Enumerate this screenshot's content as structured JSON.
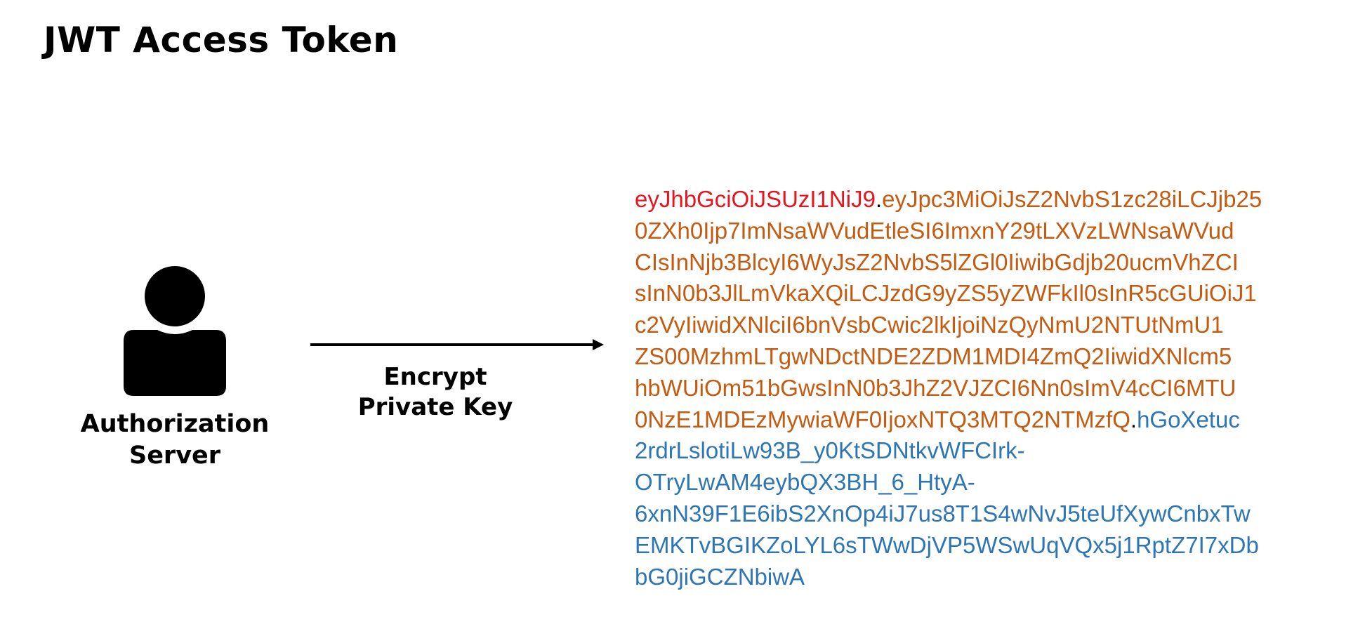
{
  "title": "JWT Access Token",
  "server": {
    "icon": "user-icon",
    "label_line1": "Authorization",
    "label_line2": "Server"
  },
  "arrow": {
    "icon": "arrow-right-icon",
    "label_line1": "Encrypt",
    "label_line2": "Private Key"
  },
  "colors": {
    "header": "#e8141e",
    "payload": "#c55a11",
    "signature": "#2e75b6",
    "text": "#000000"
  },
  "token": {
    "lines": [
      [
        {
          "text": "eyJhbGciOiJSUzI1NiJ9",
          "part": "header"
        },
        {
          "text": ".",
          "part": "dot"
        },
        {
          "text": "eyJpc3MiOiJsZ2NvbS1zc28iLCJjb25",
          "part": "payload"
        }
      ],
      [
        {
          "text": "0ZXh0Ijp7ImNsaWVudEtleSI6ImxnY29tLXVzLWNsaWVud",
          "part": "payload"
        }
      ],
      [
        {
          "text": "CIsInNjb3BlcyI6WyJsZ2NvbS5lZGl0IiwibGdjb20ucmVhZCI",
          "part": "payload"
        }
      ],
      [
        {
          "text": "sInN0b3JlLmVkaXQiLCJzdG9yZS5yZWFkIl0sInR5cGUiOiJ1",
          "part": "payload"
        }
      ],
      [
        {
          "text": "c2VyIiwidXNlciI6bnVsbCwic2lkIjoiNzQyNmU2NTUtNmU1",
          "part": "payload"
        }
      ],
      [
        {
          "text": "ZS00MzhmLTgwNDctNDE2ZDM1MDI4ZmQ2IiwidXNlcm5",
          "part": "payload"
        }
      ],
      [
        {
          "text": "hbWUiOm51bGwsInN0b3JhZ2VJZCI6Nn0sImV4cCI6MTU",
          "part": "payload"
        }
      ],
      [
        {
          "text": "0NzE1MDEzMywiaWF0IjoxNTQ3MTQ2NTMzfQ",
          "part": "payload"
        },
        {
          "text": ".",
          "part": "dot"
        },
        {
          "text": "hGoXetuc",
          "part": "signature"
        }
      ],
      [
        {
          "text": "2rdrLslotiLw93B_y0KtSDNtkvWFCIrk-",
          "part": "signature"
        }
      ],
      [
        {
          "text": "OTryLwAM4eybQX3BH_6_HtyA-",
          "part": "signature"
        }
      ],
      [
        {
          "text": "6xnN39F1E6ibS2XnOp4iJ7us8T1S4wNvJ5teUfXywCnbxTw",
          "part": "signature"
        }
      ],
      [
        {
          "text": "EMKTvBGIKZoLYL6sTWwDjVP5WSwUqVQx5j1RptZ7I7xDb",
          "part": "signature"
        }
      ],
      [
        {
          "text": "bG0jiGCZNbiwA",
          "part": "signature"
        }
      ]
    ]
  }
}
